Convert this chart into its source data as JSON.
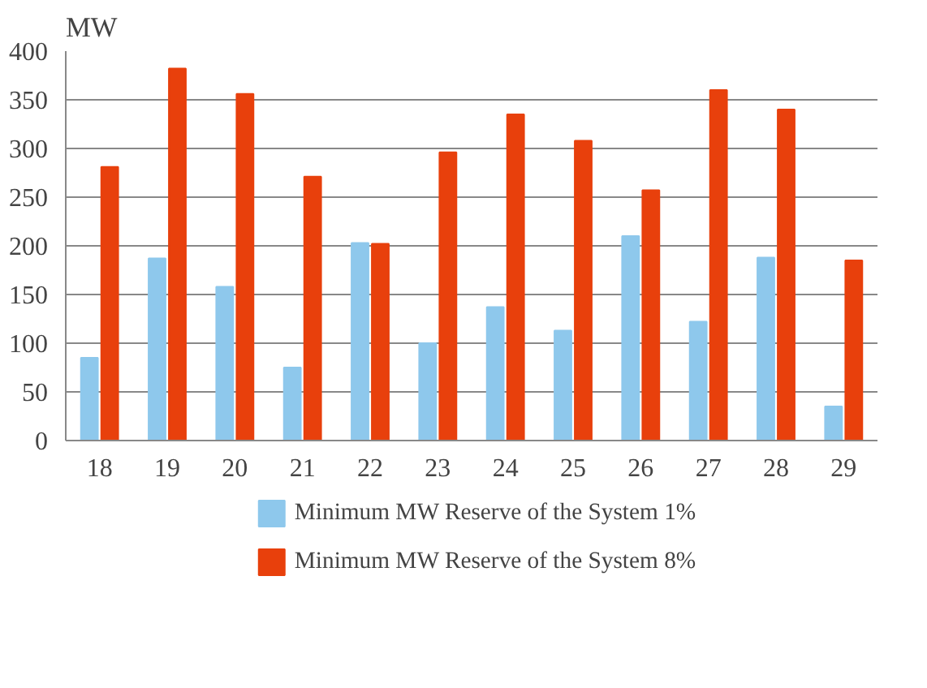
{
  "chart_data": {
    "type": "bar",
    "ylabel": "MW",
    "categories": [
      "18",
      "19",
      "20",
      "21",
      "22",
      "23",
      "24",
      "25",
      "26",
      "27",
      "28",
      "29"
    ],
    "series": [
      {
        "name": "Minimum MW Reserve of the System 1%",
        "color": "#8ec8ec",
        "values": [
          85,
          187,
          158,
          75,
          203,
          100,
          137,
          113,
          210,
          122,
          188,
          35
        ]
      },
      {
        "name": "Minimum MW Reserve of the System 8%",
        "color": "#e8400c",
        "values": [
          281,
          382,
          356,
          271,
          202,
          296,
          335,
          308,
          257,
          360,
          340,
          185
        ]
      }
    ],
    "ylim": [
      0,
      400
    ],
    "yticks": [
      0,
      50,
      100,
      150,
      200,
      250,
      300,
      350,
      400
    ],
    "grid": "y",
    "legend": "bottom"
  }
}
